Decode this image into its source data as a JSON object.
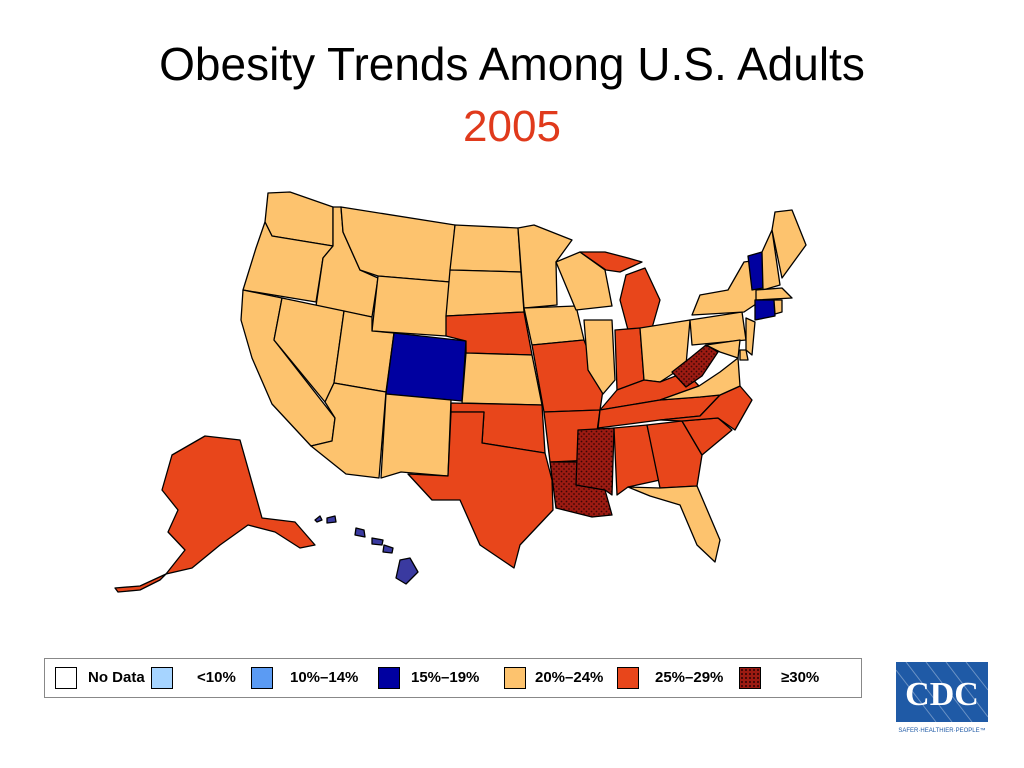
{
  "title": "Obesity Trends Among U.S. Adults",
  "year": "2005",
  "colors": {
    "no_data": "#ffffff",
    "lt10": "#a6d4ff",
    "p10_14": "#5b9bf3",
    "p15_19": "#0000a0",
    "p20_24": "#fdc36e",
    "p25_29": "#e8461b",
    "ge30": "#9c1b12",
    "border": "#000000",
    "year_red": "#e03a1c",
    "cdc_blue": "#1f5aa6"
  },
  "legend": [
    {
      "key": "no_data",
      "label": "No Data"
    },
    {
      "key": "lt10",
      "label": "<10%"
    },
    {
      "key": "p10_14",
      "label": "10%–14%"
    },
    {
      "key": "p15_19",
      "label": "15%–19%"
    },
    {
      "key": "p20_24",
      "label": "20%–24%"
    },
    {
      "key": "p25_29",
      "label": "25%–29%"
    },
    {
      "key": "ge30",
      "label": "≥30%"
    }
  ],
  "logo": {
    "text": "CDC",
    "tagline": "SAFER·HEALTHIER·PEOPLE™"
  },
  "map_regions": [
    {
      "region": "Washington",
      "category": "p20_24"
    },
    {
      "region": "Oregon",
      "category": "p20_24"
    },
    {
      "region": "California",
      "category": "p20_24"
    },
    {
      "region": "Idaho",
      "category": "p20_24"
    },
    {
      "region": "Nevada",
      "category": "p20_24"
    },
    {
      "region": "Montana",
      "category": "p20_24"
    },
    {
      "region": "Wyoming",
      "category": "p20_24"
    },
    {
      "region": "Utah",
      "category": "p20_24"
    },
    {
      "region": "Arizona",
      "category": "p20_24"
    },
    {
      "region": "Colorado",
      "category": "p15_19"
    },
    {
      "region": "New Mexico",
      "category": "p20_24"
    },
    {
      "region": "North Dakota",
      "category": "p20_24"
    },
    {
      "region": "South Dakota",
      "category": "p20_24"
    },
    {
      "region": "Nebraska",
      "category": "p25_29"
    },
    {
      "region": "Kansas",
      "category": "p20_24"
    },
    {
      "region": "Oklahoma",
      "category": "p25_29"
    },
    {
      "region": "Texas",
      "category": "p25_29"
    },
    {
      "region": "Minnesota",
      "category": "p20_24"
    },
    {
      "region": "Iowa",
      "category": "p20_24"
    },
    {
      "region": "Missouri",
      "category": "p25_29"
    },
    {
      "region": "Arkansas",
      "category": "p25_29"
    },
    {
      "region": "Louisiana",
      "category": "ge30"
    },
    {
      "region": "Wisconsin",
      "category": "p20_24"
    },
    {
      "region": "Illinois",
      "category": "p20_24"
    },
    {
      "region": "Michigan",
      "category": "p25_29"
    },
    {
      "region": "Indiana",
      "category": "p25_29"
    },
    {
      "region": "Ohio",
      "category": "p20_24"
    },
    {
      "region": "Kentucky",
      "category": "p25_29"
    },
    {
      "region": "Tennessee",
      "category": "p25_29"
    },
    {
      "region": "Mississippi",
      "category": "ge30"
    },
    {
      "region": "Alabama",
      "category": "p25_29"
    },
    {
      "region": "Georgia",
      "category": "p25_29"
    },
    {
      "region": "Florida",
      "category": "p20_24"
    },
    {
      "region": "South Carolina",
      "category": "p25_29"
    },
    {
      "region": "North Carolina",
      "category": "p25_29"
    },
    {
      "region": "Virginia",
      "category": "p20_24"
    },
    {
      "region": "West Virginia",
      "category": "ge30"
    },
    {
      "region": "Pennsylvania",
      "category": "p20_24"
    },
    {
      "region": "New York",
      "category": "p20_24"
    },
    {
      "region": "New Jersey",
      "category": "p20_24"
    },
    {
      "region": "Delaware",
      "category": "p20_24"
    },
    {
      "region": "Maryland",
      "category": "p20_24"
    },
    {
      "region": "Vermont",
      "category": "p15_19"
    },
    {
      "region": "New Hampshire",
      "category": "p20_24"
    },
    {
      "region": "Maine",
      "category": "p20_24"
    },
    {
      "region": "Massachusetts",
      "category": "p20_24"
    },
    {
      "region": "Connecticut",
      "category": "p15_19"
    },
    {
      "region": "Rhode Island",
      "category": "p20_24"
    },
    {
      "region": "Alaska",
      "category": "p25_29"
    },
    {
      "region": "Hawaii",
      "category": "p15_19"
    }
  ]
}
